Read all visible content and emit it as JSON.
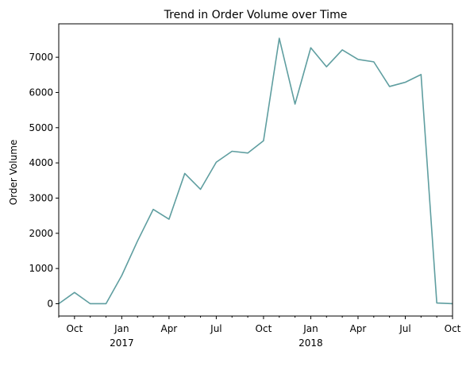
{
  "chart_data": {
    "type": "line",
    "title": "Trend in Order Volume over Time",
    "xlabel": "",
    "ylabel": "Order Volume",
    "color": "#5f9ea0",
    "grid": false,
    "xlim": [
      "2016-09",
      "2018-10"
    ],
    "ylim": [
      -350,
      7950
    ],
    "yticks": [
      0,
      1000,
      2000,
      3000,
      4000,
      5000,
      6000,
      7000
    ],
    "xticks_major": [
      {
        "month": "2016-10",
        "label": "Oct",
        "year": ""
      },
      {
        "month": "2017-01",
        "label": "Jan",
        "year": "2017"
      },
      {
        "month": "2017-04",
        "label": "Apr",
        "year": ""
      },
      {
        "month": "2017-07",
        "label": "Jul",
        "year": ""
      },
      {
        "month": "2017-10",
        "label": "Oct",
        "year": ""
      },
      {
        "month": "2018-01",
        "label": "Jan",
        "year": "2018"
      },
      {
        "month": "2018-04",
        "label": "Apr",
        "year": ""
      },
      {
        "month": "2018-07",
        "label": "Jul",
        "year": ""
      },
      {
        "month": "2018-10",
        "label": "Oct",
        "year": ""
      }
    ],
    "x": [
      "2016-09",
      "2016-10",
      "2016-11",
      "2016-12",
      "2017-01",
      "2017-02",
      "2017-03",
      "2017-04",
      "2017-05",
      "2017-06",
      "2017-07",
      "2017-08",
      "2017-09",
      "2017-10",
      "2017-11",
      "2017-12",
      "2018-01",
      "2018-02",
      "2018-03",
      "2018-04",
      "2018-05",
      "2018-06",
      "2018-07",
      "2018-08",
      "2018-09",
      "2018-10"
    ],
    "values": [
      0,
      320,
      0,
      0,
      800,
      1780,
      2680,
      2400,
      3700,
      3250,
      4020,
      4330,
      4280,
      4630,
      7540,
      5670,
      7270,
      6730,
      7210,
      6940,
      6870,
      6170,
      6290,
      6510,
      20,
      0
    ]
  }
}
